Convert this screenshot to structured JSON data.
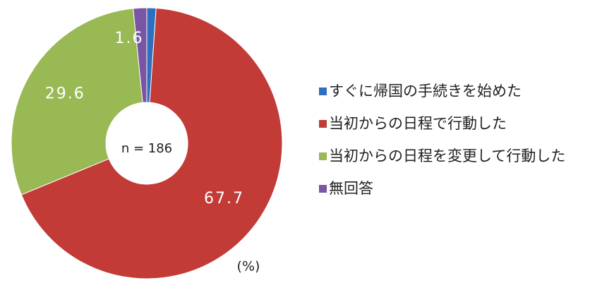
{
  "chart_data": {
    "type": "donut",
    "categories": [
      "すぐに帰国の手続きを始めた",
      "当初からの日程で行動した",
      "当初からの日程を変更して行動した",
      "無回答"
    ],
    "values": [
      1.1,
      67.7,
      29.6,
      1.6
    ],
    "colors": [
      "#2f6fbf",
      "#c23b36",
      "#98b954",
      "#7a55a3"
    ],
    "center_label": "n = 186",
    "unit_label": "(%)"
  }
}
